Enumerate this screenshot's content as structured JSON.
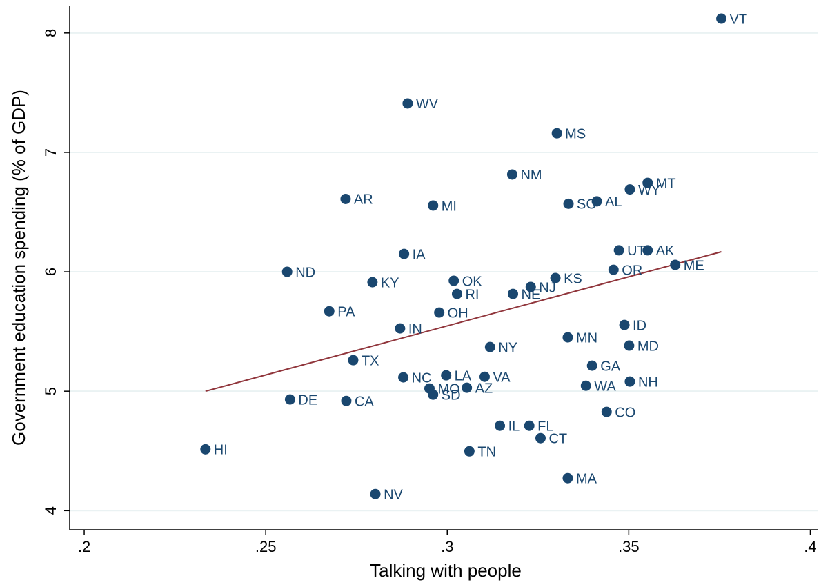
{
  "chart_data": {
    "type": "scatter",
    "x_label": "Talking with people",
    "y_label": "Government education spending (% of GDP)",
    "labels": [
      "VT",
      "WV",
      "MS",
      "NM",
      "MT",
      "WY",
      "AR",
      "MI",
      "SC",
      "AL",
      "IA",
      "UT",
      "AK",
      "ND",
      "ME",
      "OR",
      "KY",
      "OK",
      "KS",
      "NJ",
      "RI",
      "NE",
      "PA",
      "OH",
      "IN",
      "ID",
      "MN",
      "MD",
      "NY",
      "TX",
      "GA",
      "NC",
      "LA",
      "VA",
      "NH",
      "WA",
      "MO",
      "AZ",
      "SD",
      "DE",
      "CA",
      "CO",
      "IL",
      "FL",
      "CT",
      "HI",
      "TN",
      "MA",
      "NV"
    ],
    "x": [
      0.3755,
      0.2891,
      0.3302,
      0.3179,
      0.3552,
      0.3503,
      0.272,
      0.2961,
      0.3334,
      0.3412,
      0.2881,
      0.3473,
      0.3552,
      0.2559,
      0.3628,
      0.3458,
      0.2794,
      0.3018,
      0.3298,
      0.323,
      0.3027,
      0.3181,
      0.2675,
      0.2978,
      0.287,
      0.3488,
      0.3332,
      0.3501,
      0.3118,
      0.2741,
      0.3399,
      0.2879,
      0.2997,
      0.3103,
      0.3503,
      0.3382,
      0.2951,
      0.3054,
      0.2961,
      0.2567,
      0.2722,
      0.3439,
      0.3145,
      0.3226,
      0.3257,
      0.2334,
      0.3061,
      0.3332,
      0.2802
    ],
    "y": [
      8.12,
      7.41,
      7.16,
      6.815,
      6.745,
      6.69,
      6.61,
      6.555,
      6.57,
      6.59,
      6.15,
      6.18,
      6.18,
      6.0,
      6.058,
      6.017,
      5.913,
      5.925,
      5.948,
      5.873,
      5.815,
      5.815,
      5.67,
      5.659,
      5.526,
      5.555,
      5.451,
      5.382,
      5.37,
      5.26,
      5.214,
      5.116,
      5.133,
      5.121,
      5.081,
      5.046,
      5.023,
      5.029,
      4.971,
      4.931,
      4.919,
      4.827,
      4.711,
      4.711,
      4.607,
      4.514,
      4.497,
      4.272,
      4.139
    ],
    "color": "#1a476f",
    "fit": {
      "x": [
        0.2334,
        0.3755
      ],
      "y": [
        5.0,
        6.168
      ],
      "color": "#90353b"
    },
    "xlim": [
      0.196,
      0.402
    ],
    "ylim": [
      3.84,
      8.23
    ],
    "xticks": [
      {
        "value": 0.2,
        "label": ".2"
      },
      {
        "value": 0.25,
        "label": ".25"
      },
      {
        "value": 0.3,
        "label": ".3"
      },
      {
        "value": 0.35,
        "label": ".35"
      },
      {
        "value": 0.4,
        "label": ".4"
      }
    ],
    "yticks": [
      4,
      5,
      6,
      7,
      8
    ],
    "grid": true
  }
}
